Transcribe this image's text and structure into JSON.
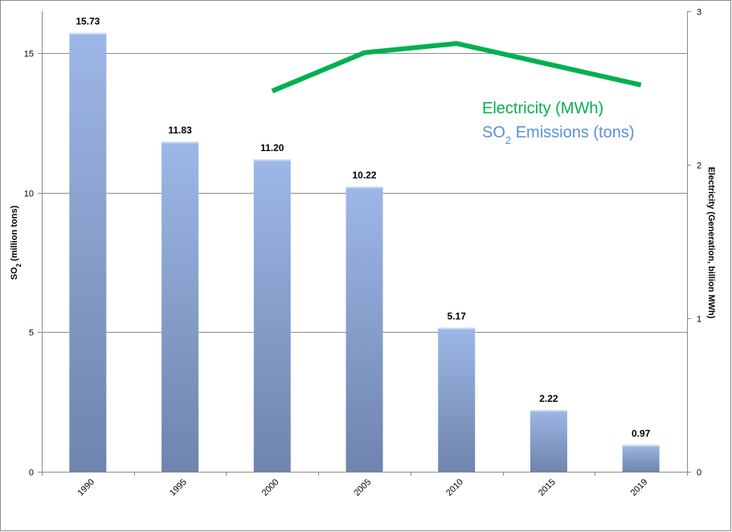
{
  "chart_data": {
    "type": "bar",
    "categories": [
      "1990",
      "1995",
      "2000",
      "2005",
      "2010",
      "2015",
      "2019"
    ],
    "series": [
      {
        "name": "SO2 Emissions (tons)",
        "type": "bar",
        "axis": "left",
        "values": [
          15.73,
          11.83,
          11.2,
          10.22,
          5.17,
          2.22,
          0.97
        ],
        "value_labels": [
          "15.73",
          "11.83",
          "11.20",
          "10.22",
          "5.17",
          "2.22",
          "0.97"
        ],
        "color": "#8EA9DB"
      },
      {
        "name": "Electricity (MWh)",
        "type": "line",
        "axis": "right",
        "x": [
          "2000",
          "2005",
          "2010",
          "2019"
        ],
        "values": [
          2.48,
          2.73,
          2.79,
          2.52
        ],
        "color": "#00B050"
      }
    ],
    "ylabel_left": {
      "prefix": "SO",
      "sub": "2",
      "suffix": " (million tons)"
    },
    "ylabel_right": "Electricity (Generation, billion MWh)",
    "ylim_left": [
      0,
      16.5
    ],
    "yticks_left": [
      0,
      5,
      10,
      15
    ],
    "ylim_right": [
      0,
      3
    ],
    "yticks_right": [
      0,
      1,
      2,
      3
    ],
    "grid": true,
    "legend": {
      "placement": "top-right",
      "entries": [
        {
          "prefix": "Electricity (MWh)",
          "sub": "",
          "suffix": "",
          "color": "#00B050"
        },
        {
          "prefix": "SO",
          "sub": "2",
          "suffix": " Emissions (tons)",
          "color": "#5B8FD6"
        }
      ]
    }
  }
}
